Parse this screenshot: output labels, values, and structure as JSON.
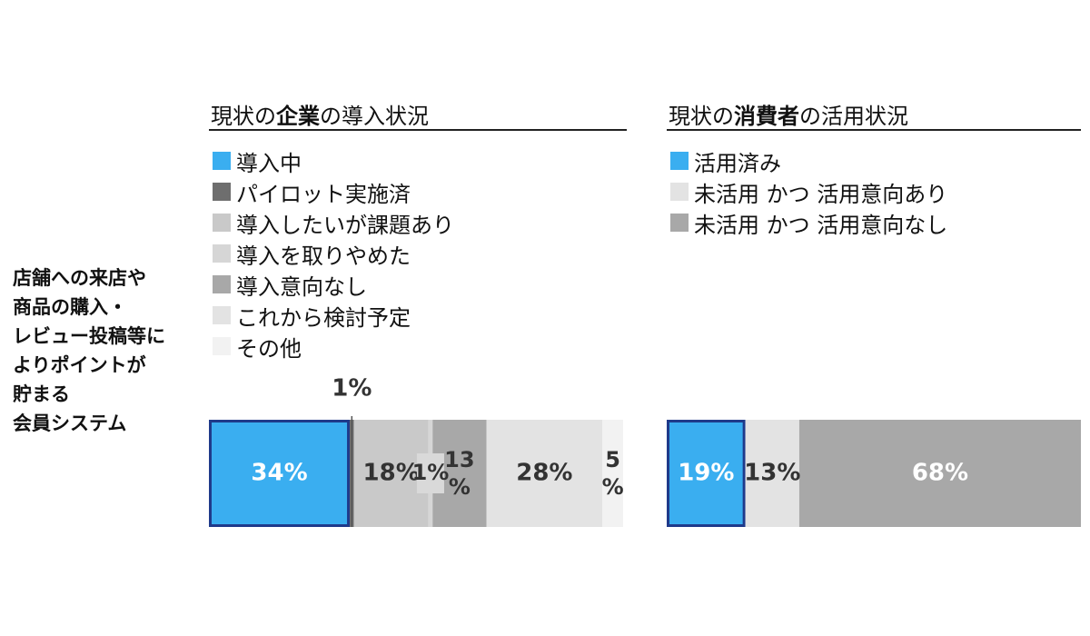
{
  "row_label_lines": [
    "店舗への来店や",
    "商品の購入・",
    "レビュー投稿等に",
    "よりポイントが",
    "貯まる",
    "会員システム"
  ],
  "left_panel": {
    "title_pre": "現状の",
    "title_bold": "企業",
    "title_post": "の導入状況"
  },
  "right_panel": {
    "title_pre": "現状の",
    "title_bold": "消費者",
    "title_post": "の活用状況"
  },
  "chart_data": [
    {
      "type": "bar",
      "stacked": true,
      "orientation": "horizontal",
      "unit": "%",
      "category": "店舗への来店や商品の購入・レビュー投稿等によりポイントが貯まる会員システム",
      "legend_position": "top",
      "series": [
        {
          "name": "導入中",
          "value": 34,
          "label": "34%",
          "color": "#3aaef0",
          "border": "#1f3a8a"
        },
        {
          "name": "パイロット実施済",
          "value": 1,
          "label": "1%",
          "color": "#6e6e6e"
        },
        {
          "name": "導入したいが課題あり",
          "value": 18,
          "label": "18%",
          "color": "#c9c9c9"
        },
        {
          "name": "導入を取りやめた",
          "value": 1,
          "label": "1%",
          "color": "#d6d6d6"
        },
        {
          "name": "導入意向なし",
          "value": 13,
          "label": "13%",
          "color": "#a8a8a8"
        },
        {
          "name": "これから検討予定",
          "value": 28,
          "label": "28%",
          "color": "#e3e3e3"
        },
        {
          "name": "その他",
          "value": 5,
          "label": "5%",
          "color": "#f2f2f2"
        }
      ]
    },
    {
      "type": "bar",
      "stacked": true,
      "orientation": "horizontal",
      "unit": "%",
      "category": "店舗への来店や商品の購入・レビュー投稿等によりポイントが貯まる会員システム",
      "legend_position": "top",
      "series": [
        {
          "name": "活用済み",
          "value": 19,
          "label": "19%",
          "color": "#3aaef0",
          "border": "#1f3a8a"
        },
        {
          "name": "未活用 かつ 活用意向あり",
          "value": 13,
          "label": "13%",
          "color": "#e3e3e3"
        },
        {
          "name": "未活用 かつ 活用意向なし",
          "value": 68,
          "label": "68%",
          "color": "#a8a8a8"
        }
      ]
    }
  ]
}
